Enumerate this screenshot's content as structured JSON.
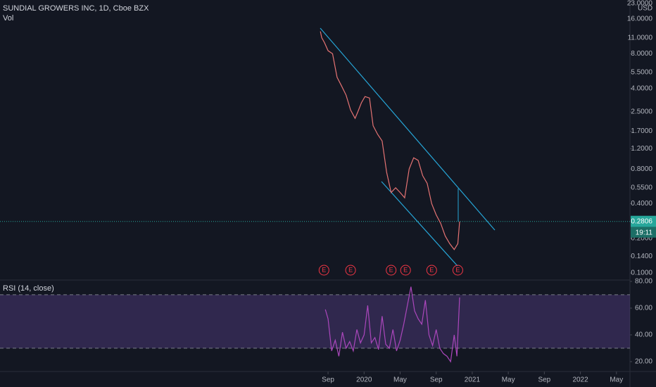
{
  "chart_data": [
    {
      "type": "line",
      "title": "SUNDIAL GROWERS INC, 1D, Cboe BZX",
      "subtitle": "Vol",
      "currency": "USD",
      "log_scale": true,
      "color": "#e57373",
      "x": [
        7.15,
        7.3,
        7.6,
        8.0,
        8.5,
        9.0,
        9.5,
        10.0,
        10.5,
        11.0,
        11.3,
        11.7,
        12.1,
        12.6,
        13.0,
        13.5,
        14.0,
        14.5,
        15.0,
        15.5,
        16.0,
        16.5,
        17.0,
        17.5,
        18.0,
        18.5,
        19.0,
        19.5,
        20.0,
        20.5,
        21.0,
        21.5,
        22.0,
        22.4,
        22.6
      ],
      "values": [
        12.5,
        11,
        10,
        8.5,
        8,
        5,
        4.2,
        3.5,
        2.6,
        2.2,
        2.5,
        3,
        3.4,
        3.3,
        1.9,
        1.6,
        1.4,
        0.75,
        0.5,
        0.55,
        0.5,
        0.45,
        0.8,
        1,
        0.95,
        0.7,
        0.6,
        0.4,
        0.32,
        0.27,
        0.21,
        0.18,
        0.16,
        0.18,
        0.28
      ],
      "xlim": [
        -28.4,
        41.5
      ],
      "xticks": [
        {
          "value": 8,
          "label": "Sep"
        },
        {
          "value": 12,
          "label": "2020"
        },
        {
          "value": 16,
          "label": "May"
        },
        {
          "value": 20,
          "label": "Sep"
        },
        {
          "value": 24,
          "label": "2021"
        },
        {
          "value": 28,
          "label": "May"
        },
        {
          "value": 32,
          "label": "Sep"
        },
        {
          "value": 36,
          "label": "2022"
        },
        {
          "value": 40,
          "label": "May"
        }
      ],
      "ylim": [
        0.087,
        23.4
      ],
      "yticks": [
        {
          "value": 23,
          "label": "23.0000"
        },
        {
          "value": 16,
          "label": "16.0000"
        },
        {
          "value": 11,
          "label": "11.0000"
        },
        {
          "value": 8,
          "label": "8.0000"
        },
        {
          "value": 5.5,
          "label": "5.5000"
        },
        {
          "value": 4,
          "label": "4.0000"
        },
        {
          "value": 2.5,
          "label": "2.5000"
        },
        {
          "value": 1.7,
          "label": "1.7000"
        },
        {
          "value": 1.2,
          "label": "1.2000"
        },
        {
          "value": 0.8,
          "label": "0.8000"
        },
        {
          "value": 0.55,
          "label": "0.5500"
        },
        {
          "value": 0.4,
          "label": "0.4000"
        },
        {
          "value": 0.2,
          "label": "0.2000"
        },
        {
          "value": 0.14,
          "label": "0.1400"
        },
        {
          "value": 0.1,
          "label": "0.1000"
        }
      ],
      "last_price": {
        "value": 0.2806,
        "label": "0.2806"
      },
      "countdown": "19:11",
      "earnings_label": "E",
      "earnings_x": [
        7.55,
        10.5,
        15.0,
        16.6,
        19.5,
        22.4
      ]
    },
    {
      "type": "line",
      "title": "RSI (14, close)",
      "color": "#ab47bc",
      "x": [
        7.7,
        8.0,
        8.4,
        8.8,
        9.2,
        9.6,
        10.0,
        10.4,
        10.8,
        11.2,
        11.6,
        12.0,
        12.4,
        12.8,
        13.2,
        13.6,
        14.0,
        14.4,
        14.8,
        15.2,
        15.6,
        16.0,
        16.4,
        16.8,
        17.2,
        17.6,
        18.0,
        18.4,
        18.8,
        19.2,
        19.6,
        20.0,
        20.4,
        20.8,
        21.2,
        21.6,
        22.0,
        22.3,
        22.6
      ],
      "values": [
        59,
        52,
        28,
        36,
        24,
        42,
        30,
        35,
        28,
        44,
        34,
        40,
        62,
        34,
        38,
        29,
        54,
        33,
        30,
        44,
        28,
        36,
        48,
        62,
        76,
        58,
        52,
        48,
        66,
        40,
        32,
        44,
        30,
        26,
        24,
        20,
        40,
        24,
        68
      ],
      "ylim": [
        12.6,
        81
      ],
      "yticks": [
        {
          "value": 80,
          "label": "80.00"
        },
        {
          "value": 60,
          "label": "60.00"
        },
        {
          "value": 40,
          "label": "40.00"
        },
        {
          "value": 20,
          "label": "20.00"
        }
      ],
      "bands": [
        30,
        70
      ]
    }
  ]
}
